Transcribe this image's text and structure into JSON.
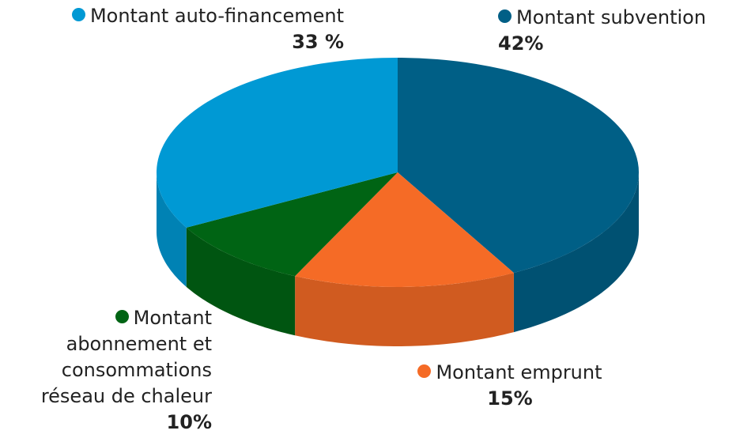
{
  "chart_data": {
    "type": "pie",
    "categories": [
      "Montant subvention",
      "Montant emprunt",
      "Montant abonnement et consommations réseau de chaleur",
      "Montant auto-financement"
    ],
    "values": [
      42,
      15,
      10,
      33
    ],
    "value_labels": [
      "42%",
      "15%",
      "10%",
      "33 %"
    ],
    "colors": [
      "#005f86",
      "#f56b26",
      "#006414",
      "#0099d4"
    ]
  }
}
